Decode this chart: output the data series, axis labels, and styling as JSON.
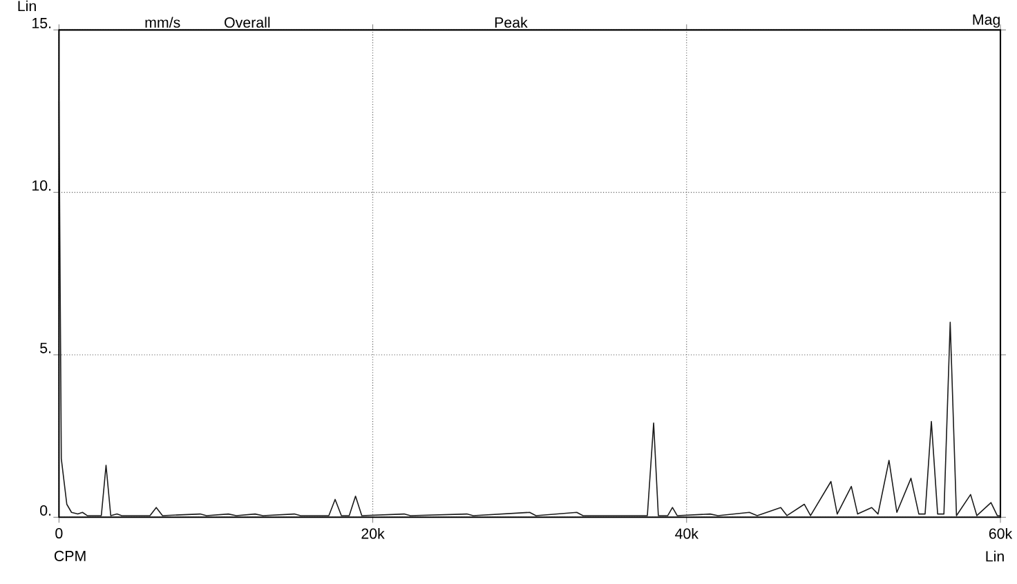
{
  "chart_data": {
    "type": "line",
    "xlabel": "CPM",
    "annotations": [
      "Lin",
      "mm/s",
      "Overall",
      "Peak",
      "Mag",
      "Lin"
    ],
    "x": [
      0,
      150,
      300,
      500,
      800,
      1200,
      1500,
      1800,
      2700,
      3000,
      3300,
      3700,
      4000,
      5800,
      6200,
      6600,
      9000,
      9400,
      10800,
      11300,
      12500,
      13000,
      15000,
      15400,
      17200,
      17600,
      18000,
      18500,
      18900,
      19300,
      22000,
      22400,
      26000,
      26400,
      30000,
      30400,
      33000,
      33400,
      37500,
      37900,
      38200,
      38800,
      39100,
      39400,
      41500,
      42000,
      44000,
      44500,
      46000,
      46400,
      47500,
      47900,
      49200,
      49600,
      50500,
      50900,
      51800,
      52200,
      52900,
      53400,
      54300,
      54800,
      55200,
      55600,
      56000,
      56400,
      56800,
      57200,
      58100,
      58500,
      59400,
      59800,
      60000
    ],
    "series": [
      {
        "color": "#1a1a1a",
        "values": [
          12.8,
          1.8,
          1.2,
          0.4,
          0.15,
          0.1,
          0.15,
          0.05,
          0.05,
          1.6,
          0.05,
          0.1,
          0.05,
          0.05,
          0.3,
          0.05,
          0.1,
          0.05,
          0.1,
          0.05,
          0.1,
          0.05,
          0.1,
          0.05,
          0.05,
          0.55,
          0.05,
          0.05,
          0.65,
          0.05,
          0.1,
          0.05,
          0.1,
          0.05,
          0.15,
          0.05,
          0.15,
          0.05,
          0.05,
          2.9,
          0.05,
          0.05,
          0.3,
          0.05,
          0.1,
          0.05,
          0.15,
          0.05,
          0.3,
          0.05,
          0.4,
          0.05,
          1.1,
          0.1,
          0.95,
          0.1,
          0.3,
          0.1,
          1.75,
          0.15,
          1.2,
          0.1,
          0.1,
          2.95,
          0.1,
          0.1,
          6.0,
          0.05,
          0.7,
          0.05,
          0.45,
          0.05,
          0.05
        ]
      }
    ],
    "xlim": [
      0,
      60000
    ],
    "ylim": [
      0,
      15
    ],
    "xticks": [
      0,
      {
        "value": 20000,
        "label": "20k"
      },
      {
        "value": 40000,
        "label": "40k"
      },
      {
        "value": 60000,
        "label": "60k"
      }
    ],
    "yticks": [
      {
        "value": 0,
        "label": "0."
      },
      {
        "value": 5,
        "label": "5."
      },
      {
        "value": 10,
        "label": "10."
      },
      {
        "value": 15,
        "label": "15."
      }
    ],
    "grid": true,
    "marker": "none",
    "line_style": "solid"
  }
}
